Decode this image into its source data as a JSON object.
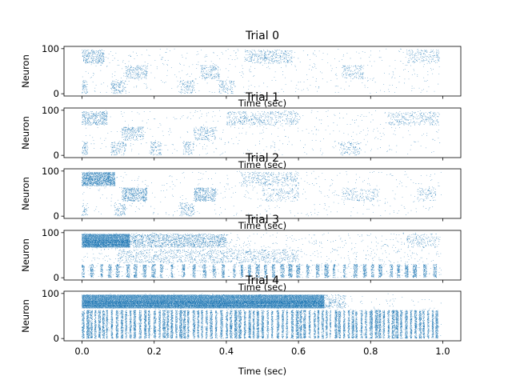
{
  "chart_data": {
    "type": "scatter",
    "colors": {
      "spikes": "#1f77b4",
      "axes": "#000000"
    },
    "xlim": [
      -0.05,
      1.05
    ],
    "ylim": [
      -5,
      105
    ],
    "n_neurons": 100,
    "shared_xlabel": "Time (sec)",
    "shared_xticks": [
      "0.0",
      "0.2",
      "0.4",
      "0.6",
      "0.8",
      "1.0"
    ],
    "xtick_values": [
      0.0,
      0.2,
      0.4,
      0.6,
      0.8,
      1.0
    ],
    "ytick_values": [
      0,
      100
    ],
    "panels": [
      {
        "title": "Trial 0",
        "ylabel": "Neuron",
        "xlabel": "Time (sec)",
        "yticks": [
          "0",
          "100"
        ],
        "dense_blocks": [],
        "clusters": [
          {
            "x": [
              0.0,
              0.06
            ],
            "y": [
              67,
              97
            ],
            "density": 0.28
          },
          {
            "x": [
              0.0,
              0.015
            ],
            "y": [
              0,
              30
            ],
            "density": 0.25
          },
          {
            "x": [
              0.08,
              0.12
            ],
            "y": [
              0,
              30
            ],
            "density": 0.22
          },
          {
            "x": [
              0.12,
              0.18
            ],
            "y": [
              33,
              63
            ],
            "density": 0.2
          },
          {
            "x": [
              0.27,
              0.31
            ],
            "y": [
              0,
              30
            ],
            "density": 0.2
          },
          {
            "x": [
              0.33,
              0.38
            ],
            "y": [
              33,
              63
            ],
            "density": 0.2
          },
          {
            "x": [
              0.38,
              0.42
            ],
            "y": [
              0,
              30
            ],
            "density": 0.16
          },
          {
            "x": [
              0.45,
              0.58
            ],
            "y": [
              67,
              97
            ],
            "density": 0.16
          },
          {
            "x": [
              0.72,
              0.78
            ],
            "y": [
              33,
              63
            ],
            "density": 0.16
          },
          {
            "x": [
              0.9,
              0.99
            ],
            "y": [
              67,
              97
            ],
            "density": 0.14
          }
        ],
        "background_rate": 0.02
      },
      {
        "title": "Trial 1",
        "ylabel": "Neuron",
        "xlabel": "Time (sec)",
        "yticks": [
          "0",
          "100"
        ],
        "dense_blocks": [],
        "clusters": [
          {
            "x": [
              0.0,
              0.07
            ],
            "y": [
              67,
              97
            ],
            "density": 0.3
          },
          {
            "x": [
              0.0,
              0.015
            ],
            "y": [
              0,
              30
            ],
            "density": 0.25
          },
          {
            "x": [
              0.08,
              0.12
            ],
            "y": [
              0,
              30
            ],
            "density": 0.22
          },
          {
            "x": [
              0.11,
              0.17
            ],
            "y": [
              33,
              63
            ],
            "density": 0.22
          },
          {
            "x": [
              0.19,
              0.22
            ],
            "y": [
              0,
              30
            ],
            "density": 0.18
          },
          {
            "x": [
              0.28,
              0.31
            ],
            "y": [
              0,
              30
            ],
            "density": 0.18
          },
          {
            "x": [
              0.31,
              0.37
            ],
            "y": [
              33,
              63
            ],
            "density": 0.2
          },
          {
            "x": [
              0.4,
              0.6
            ],
            "y": [
              67,
              97
            ],
            "density": 0.16
          },
          {
            "x": [
              0.71,
              0.77
            ],
            "y": [
              0,
              30
            ],
            "density": 0.14
          },
          {
            "x": [
              0.85,
              0.99
            ],
            "y": [
              67,
              97
            ],
            "density": 0.14
          }
        ],
        "background_rate": 0.02
      },
      {
        "title": "Trial 2",
        "ylabel": "Neuron",
        "xlabel": "Time (sec)",
        "yticks": [
          "0",
          "100"
        ],
        "dense_blocks": [
          {
            "x": [
              0.0,
              0.09
            ],
            "y": [
              67,
              97
            ],
            "density": 0.6
          },
          {
            "x": [
              0.11,
              0.18
            ],
            "y": [
              33,
              63
            ],
            "density": 0.35
          },
          {
            "x": [
              0.31,
              0.37
            ],
            "y": [
              33,
              63
            ],
            "density": 0.3
          }
        ],
        "clusters": [
          {
            "x": [
              0.0,
              0.015
            ],
            "y": [
              0,
              30
            ],
            "density": 0.2
          },
          {
            "x": [
              0.09,
              0.12
            ],
            "y": [
              0,
              30
            ],
            "density": 0.18
          },
          {
            "x": [
              0.27,
              0.31
            ],
            "y": [
              0,
              30
            ],
            "density": 0.16
          },
          {
            "x": [
              0.44,
              0.6
            ],
            "y": [
              67,
              97
            ],
            "density": 0.16
          },
          {
            "x": [
              0.5,
              0.6
            ],
            "y": [
              33,
              63
            ],
            "density": 0.12
          },
          {
            "x": [
              0.72,
              0.82
            ],
            "y": [
              33,
              63
            ],
            "density": 0.12
          },
          {
            "x": [
              0.93,
              0.98
            ],
            "y": [
              33,
              63
            ],
            "density": 0.12
          }
        ],
        "background_rate": 0.02
      },
      {
        "title": "Trial 3",
        "ylabel": "Neuron",
        "xlabel": "Time (sec)",
        "yticks": [
          "0",
          "100"
        ],
        "dense_blocks": [
          {
            "x": [
              0.0,
              0.13
            ],
            "y": [
              67,
              97
            ],
            "density": 0.95
          }
        ],
        "clusters": [
          {
            "x": [
              0.12,
              0.4
            ],
            "y": [
              67,
              97
            ],
            "density": 0.3
          },
          {
            "x": [
              0.1,
              0.6
            ],
            "y": [
              33,
              63
            ],
            "density": 0.14
          },
          {
            "x": [
              0.9,
              0.99
            ],
            "y": [
              67,
              97
            ],
            "density": 0.12
          }
        ],
        "bar_columns": {
          "x_start": 0.0,
          "x_end": 0.99,
          "y": [
            0,
            30
          ],
          "period": 0.025,
          "width": 0.008,
          "density": 0.45
        },
        "background_rate": 0.04
      },
      {
        "title": "Trial 4",
        "ylabel": "Neuron",
        "xlabel": "Time (sec)",
        "yticks": [
          "0",
          "100"
        ],
        "dense_blocks": [
          {
            "x": [
              0.0,
              0.67
            ],
            "y": [
              67,
              97
            ],
            "density": 0.97
          }
        ],
        "clusters": [
          {
            "x": [
              0.67,
              0.73
            ],
            "y": [
              67,
              97
            ],
            "density": 0.2
          }
        ],
        "bar_columns": {
          "x_start": 0.0,
          "x_end": 0.99,
          "y": [
            0,
            63
          ],
          "period": 0.012,
          "width": 0.005,
          "density": 0.6
        },
        "background_rate": 0.02
      }
    ]
  }
}
